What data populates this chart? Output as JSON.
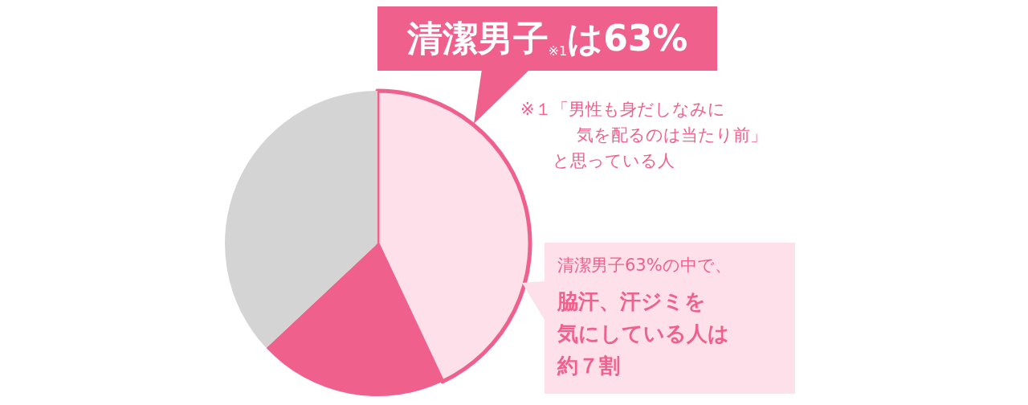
{
  "chart_data": {
    "type": "pie",
    "title": "清潔男子$_{※1}$は63%",
    "categories": [
      null,
      null,
      null
    ],
    "values": [
      43,
      20,
      37
    ],
    "colors": [
      "#fde0ea",
      "#f0608c",
      "#d4d4d4"
    ],
    "annotations": [
      "※１「男性も身だしなみに",
      "気を配るのは当たり前」",
      "と思っている人",
      "清潔男子63%の中で、",
      "脇汗、汗ジミを",
      "気にしている人は",
      "約７割"
    ]
  }
}
